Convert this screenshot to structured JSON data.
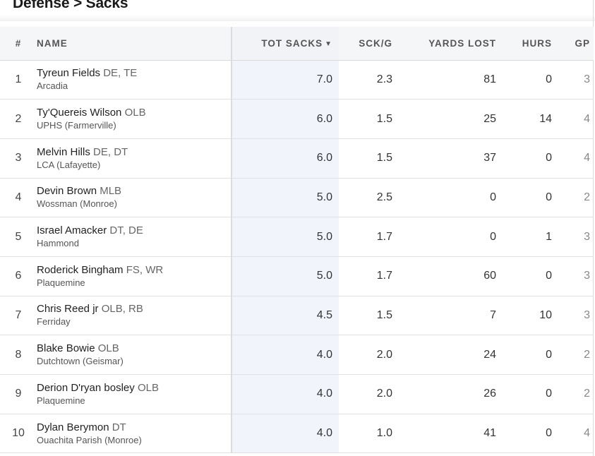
{
  "header": {
    "title": "Defense > Sacks"
  },
  "table": {
    "columns": {
      "rank": "#",
      "name": "NAME",
      "tot_sacks": "TOT SACKS",
      "sort_indicator": "▼",
      "sck_g": "SCK/G",
      "yards_lost": "YARDS LOST",
      "hurs": "HURS",
      "gp": "GP"
    },
    "rows": [
      {
        "rank": "1",
        "name": "Tyreun Fields",
        "pos": "DE, TE",
        "school": "Arcadia",
        "tot_sacks": "7.0",
        "sck_g": "2.3",
        "yards_lost": "81",
        "hurs": "0",
        "gp": "3"
      },
      {
        "rank": "2",
        "name": "Ty'Quereis Wilson",
        "pos": " OLB",
        "school": "UPHS (Farmerville)",
        "tot_sacks": "6.0",
        "sck_g": "1.5",
        "yards_lost": "25",
        "hurs": "14",
        "gp": "4"
      },
      {
        "rank": "3",
        "name": "Melvin Hills",
        "pos": "DE, DT",
        "school": "LCA (Lafayette)",
        "tot_sacks": "6.0",
        "sck_g": "1.5",
        "yards_lost": "37",
        "hurs": "0",
        "gp": "4"
      },
      {
        "rank": "4",
        "name": "Devin Brown",
        "pos": "MLB",
        "school": "Wossman (Monroe)",
        "tot_sacks": "5.0",
        "sck_g": "2.5",
        "yards_lost": "0",
        "hurs": "0",
        "gp": "2"
      },
      {
        "rank": "5",
        "name": "Israel Amacker",
        "pos": "DT, DE",
        "school": "Hammond",
        "tot_sacks": "5.0",
        "sck_g": "1.7",
        "yards_lost": "0",
        "hurs": "1",
        "gp": "3"
      },
      {
        "rank": "6",
        "name": "Roderick Bingham",
        "pos": "FS, WR",
        "school": "Plaquemine",
        "tot_sacks": "5.0",
        "sck_g": "1.7",
        "yards_lost": "60",
        "hurs": "0",
        "gp": "3"
      },
      {
        "rank": "7",
        "name": "Chris Reed jr",
        "pos": "OLB, RB",
        "school": "Ferriday",
        "tot_sacks": "4.5",
        "sck_g": "1.5",
        "yards_lost": "7",
        "hurs": "10",
        "gp": "3"
      },
      {
        "rank": "8",
        "name": "Blake Bowie",
        "pos": "OLB",
        "school": "Dutchtown (Geismar)",
        "tot_sacks": "4.0",
        "sck_g": "2.0",
        "yards_lost": "24",
        "hurs": "0",
        "gp": "2"
      },
      {
        "rank": "9",
        "name": "Derion D'ryan bosley",
        "pos": "OLB",
        "school": "Plaquemine",
        "tot_sacks": "4.0",
        "sck_g": "2.0",
        "yards_lost": "26",
        "hurs": "0",
        "gp": "2"
      },
      {
        "rank": "10",
        "name": "Dylan Berymon",
        "pos": "DT",
        "school": "Ouachita Parish (Monroe)",
        "tot_sacks": "4.0",
        "sck_g": "1.0",
        "yards_lost": "41",
        "hurs": "0",
        "gp": "4"
      }
    ]
  }
}
